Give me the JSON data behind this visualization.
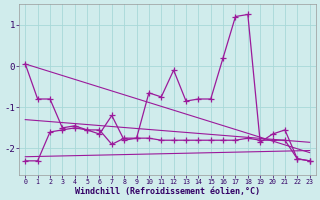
{
  "x": [
    0,
    1,
    2,
    3,
    4,
    5,
    6,
    7,
    8,
    9,
    10,
    11,
    12,
    13,
    14,
    15,
    16,
    17,
    18,
    19,
    20,
    21,
    22,
    23
  ],
  "line1": [
    0.05,
    -0.8,
    -0.8,
    -1.5,
    -1.45,
    -1.55,
    -1.65,
    -1.2,
    -1.8,
    -1.75,
    -0.65,
    -0.75,
    -0.1,
    -0.85,
    -0.8,
    -0.8,
    0.2,
    1.2,
    1.25,
    -1.85,
    -1.65,
    -1.55,
    -2.25,
    -2.3
  ],
  "line2": [
    -2.3,
    -2.3,
    -1.6,
    -1.55,
    -1.5,
    -1.55,
    -1.55,
    -1.9,
    -1.75,
    -1.75,
    -1.75,
    -1.8,
    -1.8,
    -1.8,
    -1.8,
    -1.8,
    -1.8,
    -1.8,
    -1.75,
    -1.8,
    -1.8,
    -1.8,
    -2.25,
    -2.3
  ],
  "trend1": [
    0.05,
    -2.1
  ],
  "trend2": [
    -1.3,
    -1.85
  ],
  "trend3": [
    -2.2,
    -2.05
  ],
  "color": "#9b1a9b",
  "background": "#d0ecec",
  "grid_color": "#a8d8d8",
  "xlabel": "Windchill (Refroidissement éolien,°C)",
  "ylim": [
    -2.65,
    1.5
  ],
  "xlim": [
    -0.5,
    23.5
  ],
  "yticks": [
    -2,
    -1,
    0,
    1
  ],
  "xticks": [
    0,
    1,
    2,
    3,
    4,
    5,
    6,
    7,
    8,
    9,
    10,
    11,
    12,
    13,
    14,
    15,
    16,
    17,
    18,
    19,
    20,
    21,
    22,
    23
  ]
}
